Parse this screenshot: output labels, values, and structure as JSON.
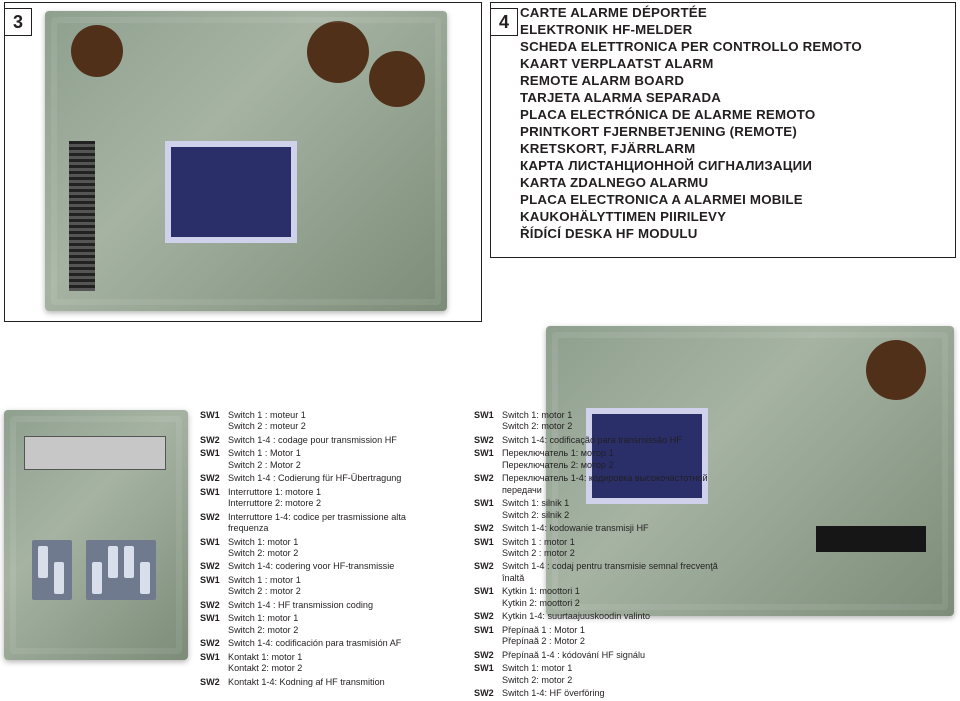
{
  "figure3": {
    "number": "3"
  },
  "figure4": {
    "number": "4"
  },
  "header": {
    "lines": [
      "CARTE ALARME DÉPORTÉE",
      "ELEKTRONIK HF-MELDER",
      "SCHEDA ELETTRONICA PER CONTROLLO REMOTO",
      "KAART VERPLAATST ALARM",
      "REMOTE ALARM BOARD",
      "TARJETA ALARMA SEPARADA",
      "PLACA ELECTRÓNICA DE ALARME REMOTO",
      "PRINTKORT FJERNBETJENING (REMOTE)",
      "KRETSKORT, FJÄRRLARM",
      "КАРТА ЛИСТАНЦИОННОЙ СИГНАЛИЗАЦИИ",
      "KARTA ZDALNEGO ALARMU",
      "PLACA ELECTRONICA A ALARMEI MOBILE",
      "KAUKOHÄLYTTIMEN PIIRILEVY",
      "ŘÍDÍCÍ DESKA HF MODULU"
    ]
  },
  "legend": {
    "col1": [
      {
        "tag": "SW1",
        "txt": "Switch 1 : moteur 1\nSwitch 2 : moteur 2"
      },
      {
        "tag": "SW2",
        "txt": "Switch 1-4 : codage pour transmission HF"
      },
      {
        "tag": "SW1",
        "txt": "Switch 1 : Motor 1\nSwitch 2 : Motor 2"
      },
      {
        "tag": "SW2",
        "txt": "Switch 1-4 : Codierung für HF-Übertragung"
      },
      {
        "tag": "SW1",
        "txt": "Interruttore 1: motore 1\nInterruttore 2: motore 2"
      },
      {
        "tag": "SW2",
        "txt": "Interruttore 1-4: codice per trasmissione alta frequenza"
      },
      {
        "tag": "SW1",
        "txt": "Switch 1: motor 1\nSwitch 2: motor 2"
      },
      {
        "tag": "SW2",
        "txt": "Switch 1-4: codering voor HF-transmissie"
      },
      {
        "tag": "SW1",
        "txt": "Switch 1 : motor 1\nSwitch 2 : motor 2"
      },
      {
        "tag": "SW2",
        "txt": "Switch 1-4 : HF transmission coding"
      },
      {
        "tag": "SW1",
        "txt": "Switch 1: motor 1\nSwitch 2: motor 2"
      },
      {
        "tag": "SW2",
        "txt": "Switch 1-4: codificación para trasmisión AF"
      },
      {
        "tag": "SW1",
        "txt": "Kontakt 1: motor 1\nKontakt 2: motor 2"
      },
      {
        "tag": "SW2",
        "txt": "Kontakt 1-4: Kodning af HF transmition"
      }
    ],
    "col2": [
      {
        "tag": "SW1",
        "txt": "Switch 1: motor 1\nSwitch 2: motor 2"
      },
      {
        "tag": "SW2",
        "txt": "Switch 1-4: codificação para transmissão HF"
      },
      {
        "tag": "SW1",
        "txt": "Переключатель 1: мотор 1\nПереключатель 2: мотор 2"
      },
      {
        "tag": "SW2",
        "txt": "Переключатель 1-4: кодировка высокочастотной передачи"
      },
      {
        "tag": "SW1",
        "txt": "Switch 1: silnik 1\nSwitch 2: silnik 2"
      },
      {
        "tag": "SW2",
        "txt": "Switch 1-4: kodowanie transmisji HF"
      },
      {
        "tag": "SW1",
        "txt": "Switch 1 : motor 1\nSwitch 2 : motor 2"
      },
      {
        "tag": "SW2",
        "txt": "Switch 1-4 : codaj pentru transmisie semnal frecvenţă înaltă"
      },
      {
        "tag": "SW1",
        "txt": "Kytkin 1: moottori 1\nKytkin 2: moottori 2"
      },
      {
        "tag": "SW2",
        "txt": "Kytkin 1-4: suurtaajuuskoodin valinto"
      },
      {
        "tag": "SW1",
        "txt": "Přepínaă 1 : Motor 1\nPřepínaă 2 : Motor 2"
      },
      {
        "tag": "SW2",
        "txt": "Přepínaă 1-4 : kódování HF signálu"
      },
      {
        "tag": "SW1",
        "txt": "Switch 1: motor 1\nSwitch 2: motor 2"
      },
      {
        "tag": "SW2",
        "txt": "Switch 1-4: HF överföring"
      }
    ]
  },
  "colors": {
    "text": "#231f20",
    "boardGreen": "#8fa08f",
    "chipBlue": "#2a2f6a",
    "capBrown": "#503018"
  }
}
